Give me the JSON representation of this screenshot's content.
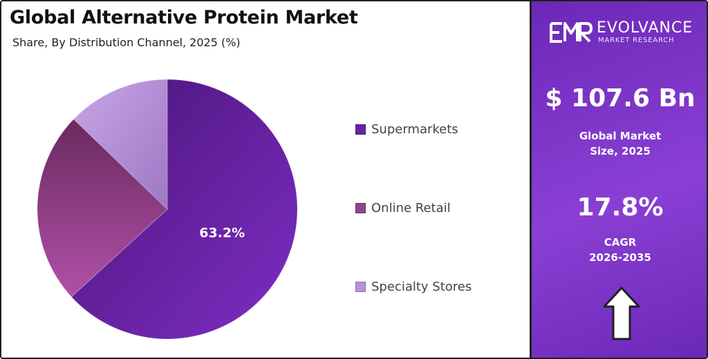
{
  "header": {
    "title": "Global Alternative Protein Market",
    "subtitle": "Share, By Distribution Channel, 2025 (%)"
  },
  "chart_data": {
    "type": "pie",
    "title": "Global Alternative Protein Market",
    "subtitle": "Share, By Distribution Channel, 2025 (%)",
    "categories": [
      "Supermarkets",
      "Online Retail",
      "Specialty Stores"
    ],
    "values": [
      63.2,
      24.0,
      12.8
    ],
    "data_labels": [
      "63.2%",
      "",
      ""
    ],
    "colors": [
      "#6a22a6",
      "#8e4586",
      "#b892d8"
    ],
    "legend_position": "right"
  },
  "brand": {
    "name": "EVOLVANCE",
    "sub": "MARKET RESEARCH",
    "logo_letters": "EMR"
  },
  "stats": {
    "market_value": "$ 107.6 Bn",
    "market_label_line1": "Global Market",
    "market_label_line2": "Size, 2025",
    "cagr_value": "17.8%",
    "cagr_label_line1": "CAGR",
    "cagr_label_line2": "2026-2035"
  },
  "icons": {
    "growth": "up-arrow-icon",
    "logo": "emr-logo-icon"
  }
}
